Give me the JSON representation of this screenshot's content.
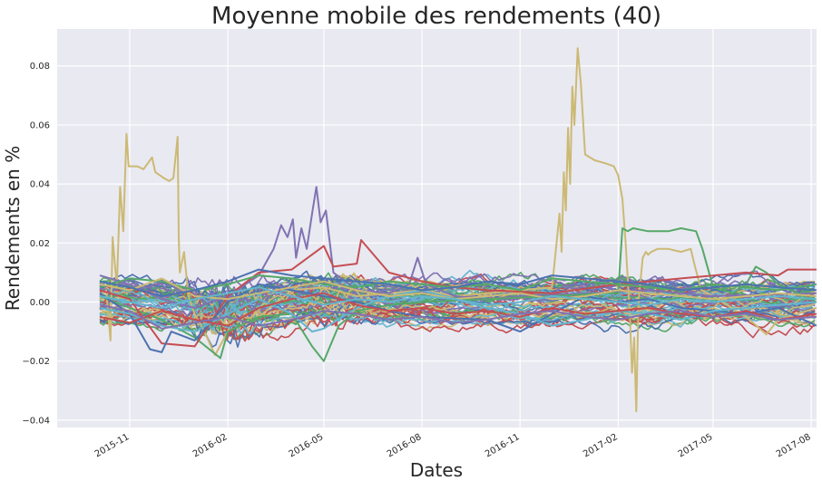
{
  "chart_data": {
    "type": "line",
    "title": "Moyenne mobile des rendements (40)",
    "xlabel": "Dates",
    "ylabel": "Rendements en %",
    "x_range": [
      "2015-08-25",
      "2017-08-06"
    ],
    "ylim": [
      -0.0425,
      0.0925
    ],
    "x_ticks": [
      "2015-11",
      "2016-02",
      "2016-05",
      "2016-08",
      "2016-11",
      "2017-02",
      "2017-05",
      "2017-08"
    ],
    "y_ticks": [
      -0.04,
      -0.02,
      0.0,
      0.02,
      0.04,
      0.06,
      0.08
    ],
    "y_tick_labels": [
      "−0.04",
      "−0.02",
      "0.00",
      "0.02",
      "0.04",
      "0.06",
      "0.08"
    ],
    "grid": true,
    "legend": "none",
    "style": "seaborn-darkgrid",
    "background": "#e9e9f1",
    "series_count_approx": 60,
    "palette": [
      "#4c72b0",
      "#55a868",
      "#c44e52",
      "#8172b2",
      "#ccb974",
      "#64b5cd"
    ],
    "series": [
      {
        "color": "#ccb974",
        "x": [
          "2015-10-04",
          "2015-10-10",
          "2015-10-14",
          "2015-10-16",
          "2015-10-20",
          "2015-10-23",
          "2015-10-26",
          "2015-10-29",
          "2015-10-31",
          "2015-11-04",
          "2015-11-08",
          "2015-11-14",
          "2015-11-18",
          "2015-11-20",
          "2015-11-22",
          "2015-11-25",
          "2015-11-29",
          "2015-12-03",
          "2015-12-08",
          "2015-12-12",
          "2015-12-16",
          "2015-12-17",
          "2015-12-18",
          "2015-12-22",
          "2015-12-26",
          "2016-01-01",
          "2016-01-10",
          "2016-01-20",
          "2016-02-01",
          "2016-03-01",
          "2016-04-01",
          "2016-05-01",
          "2016-06-01",
          "2016-07-01",
          "2016-08-01",
          "2016-09-01",
          "2016-10-01",
          "2016-11-01",
          "2016-12-01",
          "2016-12-08",
          "2016-12-10",
          "2016-12-12",
          "2016-12-14",
          "2016-12-16",
          "2016-12-18",
          "2016-12-20",
          "2016-12-22",
          "2016-12-25",
          "2016-12-28",
          "2017-01-01",
          "2017-01-10",
          "2017-01-20",
          "2017-01-28",
          "2017-02-01",
          "2017-02-05",
          "2017-02-08",
          "2017-02-12",
          "2017-02-14",
          "2017-02-16",
          "2017-02-18",
          "2017-02-20",
          "2017-02-24",
          "2017-02-27",
          "2017-03-01",
          "2017-03-04",
          "2017-03-10",
          "2017-03-20",
          "2017-04-01",
          "2017-04-10",
          "2017-04-14",
          "2017-04-20",
          "2017-05-01",
          "2017-06-01",
          "2017-06-20",
          "2017-07-01",
          "2017-08-06"
        ],
        "values": [
          0.001,
          0.004,
          -0.013,
          0.022,
          0.005,
          0.039,
          0.024,
          0.057,
          0.046,
          0.046,
          0.046,
          0.045,
          0.047,
          0.048,
          0.049,
          0.044,
          0.043,
          0.042,
          0.041,
          0.042,
          0.056,
          0.022,
          0.01,
          0.017,
          0.002,
          -0.004,
          -0.01,
          -0.018,
          -0.01,
          -0.005,
          0.004,
          0.005,
          0.002,
          0.003,
          0.004,
          0.002,
          0.003,
          0.004,
          0.005,
          0.03,
          0.017,
          0.044,
          0.031,
          0.059,
          0.04,
          0.073,
          0.06,
          0.086,
          0.074,
          0.05,
          0.048,
          0.047,
          0.046,
          0.043,
          0.035,
          0.02,
          -0.005,
          -0.024,
          -0.012,
          -0.037,
          0.0,
          0.015,
          0.017,
          0.016,
          0.017,
          0.018,
          0.018,
          0.017,
          0.018,
          0.012,
          0.004,
          0.002,
          -0.005,
          -0.011,
          -0.006,
          -0.002
        ]
      },
      {
        "color": "#8172b2",
        "x": [
          "2015-10-04",
          "2015-11-01",
          "2015-12-01",
          "2016-01-01",
          "2016-02-01",
          "2016-03-01",
          "2016-03-15",
          "2016-03-22",
          "2016-03-28",
          "2016-04-02",
          "2016-04-05",
          "2016-04-10",
          "2016-04-15",
          "2016-04-20",
          "2016-04-24",
          "2016-04-28",
          "2016-05-03",
          "2016-05-10",
          "2016-06-01",
          "2016-07-01",
          "2016-07-20",
          "2016-07-28",
          "2016-08-05",
          "2016-09-01",
          "2016-10-01",
          "2016-11-01",
          "2017-01-01",
          "2017-03-01",
          "2017-05-01",
          "2017-08-06"
        ],
        "values": [
          0.009,
          0.006,
          0.001,
          -0.002,
          0.002,
          0.009,
          0.018,
          0.026,
          0.022,
          0.028,
          0.015,
          0.025,
          0.018,
          0.03,
          0.039,
          0.027,
          0.031,
          0.01,
          0.004,
          0.003,
          0.006,
          0.015,
          0.006,
          0.002,
          0.001,
          0.002,
          0.003,
          0.004,
          0.002,
          0.003
        ]
      },
      {
        "color": "#55a868",
        "x": [
          "2015-10-04",
          "2015-11-01",
          "2015-12-01",
          "2016-01-01",
          "2016-01-25",
          "2016-02-01",
          "2016-03-01",
          "2016-04-01",
          "2016-04-20",
          "2016-05-01",
          "2016-05-15",
          "2016-06-01",
          "2016-07-01",
          "2016-08-01",
          "2016-10-01",
          "2016-12-01",
          "2017-01-20",
          "2017-02-01",
          "2017-02-05",
          "2017-02-10",
          "2017-02-15",
          "2017-03-01",
          "2017-03-20",
          "2017-04-01",
          "2017-04-15",
          "2017-04-21",
          "2017-05-01",
          "2017-05-20",
          "2017-06-01",
          "2017-06-10",
          "2017-06-20",
          "2017-07-01",
          "2017-08-06"
        ],
        "values": [
          0.002,
          -0.002,
          -0.006,
          -0.012,
          -0.019,
          -0.01,
          -0.005,
          -0.004,
          -0.015,
          -0.02,
          -0.008,
          -0.003,
          -0.001,
          0.0,
          0.001,
          0.002,
          0.003,
          0.003,
          0.025,
          0.024,
          0.025,
          0.024,
          0.024,
          0.025,
          0.024,
          0.018,
          0.005,
          0.003,
          0.006,
          0.012,
          0.01,
          0.006,
          0.0
        ]
      },
      {
        "color": "#c44e52",
        "x": [
          "2015-10-04",
          "2015-11-01",
          "2015-12-01",
          "2016-01-01",
          "2016-02-01",
          "2016-03-01",
          "2016-04-01",
          "2016-05-01",
          "2016-05-10",
          "2016-06-01",
          "2016-06-05",
          "2016-07-01",
          "2016-08-01",
          "2016-09-01",
          "2016-10-01",
          "2016-12-01",
          "2017-02-01",
          "2017-04-01",
          "2017-06-01",
          "2017-07-01",
          "2017-07-10",
          "2017-08-06"
        ],
        "values": [
          0.004,
          0.001,
          -0.014,
          -0.015,
          0.002,
          0.01,
          0.011,
          0.019,
          0.012,
          0.013,
          0.021,
          0.01,
          0.007,
          0.005,
          0.004,
          0.003,
          0.006,
          0.008,
          0.01,
          0.009,
          0.011,
          0.011
        ]
      },
      {
        "color": "#4c72b0",
        "x": [
          "2015-10-04",
          "2015-11-01",
          "2015-11-20",
          "2015-12-01",
          "2015-12-10",
          "2016-01-01",
          "2016-02-01",
          "2016-03-01",
          "2016-04-01",
          "2016-05-01",
          "2016-06-01",
          "2016-07-01",
          "2016-08-01",
          "2016-10-01",
          "2016-11-01",
          "2016-12-01",
          "2017-01-01",
          "2017-02-01",
          "2017-03-01",
          "2017-04-01",
          "2017-05-01",
          "2017-06-01",
          "2017-07-01",
          "2017-08-06"
        ],
        "values": [
          0.003,
          -0.004,
          -0.016,
          -0.017,
          -0.01,
          -0.013,
          0.0,
          0.006,
          0.004,
          0.002,
          0.0,
          -0.003,
          -0.005,
          -0.006,
          -0.01,
          -0.004,
          0.002,
          0.0,
          0.001,
          -0.002,
          -0.003,
          -0.004,
          -0.002,
          -0.008
        ]
      },
      {
        "color": "#64b5cd",
        "x": [
          "2015-10-04",
          "2015-11-01",
          "2015-12-01",
          "2016-01-01",
          "2016-02-01",
          "2016-03-01",
          "2016-04-01",
          "2016-04-20",
          "2016-05-01",
          "2016-06-01",
          "2016-07-01",
          "2016-08-01",
          "2016-09-01",
          "2016-10-01",
          "2016-11-01",
          "2016-12-01",
          "2017-01-01",
          "2017-02-01",
          "2017-03-01",
          "2017-04-01",
          "2017-05-01",
          "2017-06-01",
          "2017-07-01",
          "2017-08-06"
        ],
        "values": [
          -0.002,
          -0.004,
          -0.008,
          -0.01,
          -0.004,
          0.001,
          -0.004,
          -0.01,
          -0.009,
          -0.002,
          0.002,
          0.004,
          0.001,
          -0.002,
          -0.004,
          -0.008,
          -0.006,
          -0.003,
          -0.004,
          -0.006,
          -0.003,
          -0.002,
          -0.001,
          0.0
        ]
      },
      {
        "color": "#55a868",
        "x": [
          "2015-10-04",
          "2015-11-01",
          "2015-12-01",
          "2016-01-01",
          "2016-02-01",
          "2016-03-01",
          "2016-04-01",
          "2016-05-01",
          "2016-06-01",
          "2016-07-01",
          "2016-08-01",
          "2016-09-01",
          "2016-10-01",
          "2016-11-01",
          "2016-12-01",
          "2017-01-01",
          "2017-02-01",
          "2017-03-01",
          "2017-04-01",
          "2017-05-01",
          "2017-06-01",
          "2017-07-01",
          "2017-08-06"
        ],
        "values": [
          0.005,
          0.008,
          0.007,
          0.004,
          0.006,
          0.009,
          0.008,
          0.006,
          0.005,
          0.007,
          0.006,
          0.005,
          0.006,
          0.004,
          0.008,
          0.007,
          0.006,
          0.005,
          0.004,
          0.006,
          0.005,
          0.004,
          0.006
        ]
      },
      {
        "color": "#c44e52",
        "x": [
          "2015-10-04",
          "2015-11-01",
          "2015-12-01",
          "2016-01-01",
          "2016-02-01",
          "2016-03-01",
          "2016-04-01",
          "2016-05-01",
          "2016-06-01",
          "2016-07-01",
          "2016-08-01",
          "2016-09-01",
          "2016-10-01",
          "2016-11-01",
          "2016-12-01",
          "2017-01-01",
          "2017-02-01",
          "2017-03-01",
          "2017-04-01",
          "2017-05-01",
          "2017-06-01",
          "2017-07-01",
          "2017-08-06"
        ],
        "values": [
          -0.005,
          -0.007,
          -0.003,
          -0.006,
          -0.008,
          -0.002,
          0.001,
          0.003,
          -0.001,
          -0.003,
          -0.002,
          -0.004,
          -0.003,
          -0.005,
          -0.002,
          -0.004,
          -0.003,
          -0.002,
          -0.004,
          -0.005,
          -0.003,
          -0.006,
          -0.004
        ]
      },
      {
        "color": "#ccb974",
        "x": [
          "2015-10-04",
          "2015-11-01",
          "2015-12-01",
          "2016-01-01",
          "2016-02-01",
          "2016-03-01",
          "2016-04-01",
          "2016-05-01",
          "2016-06-01",
          "2016-07-01",
          "2016-08-01",
          "2016-09-01",
          "2016-10-01",
          "2016-11-01",
          "2016-12-01",
          "2017-01-01",
          "2017-02-01",
          "2017-03-01",
          "2017-04-01",
          "2017-05-01",
          "2017-06-01",
          "2017-07-01",
          "2017-08-06"
        ],
        "values": [
          0.006,
          0.004,
          0.008,
          0.002,
          0.001,
          0.003,
          0.005,
          0.007,
          0.004,
          0.002,
          0.003,
          0.001,
          0.002,
          0.003,
          0.001,
          0.002,
          0.004,
          0.003,
          0.002,
          0.001,
          0.002,
          0.003,
          0.002
        ]
      },
      {
        "color": "#4c72b0",
        "x": [
          "2015-10-04",
          "2015-11-01",
          "2015-12-01",
          "2016-01-01",
          "2016-02-01",
          "2016-03-01",
          "2016-04-01",
          "2016-05-01",
          "2016-06-01",
          "2016-07-01",
          "2016-08-01",
          "2016-09-01",
          "2016-10-01",
          "2016-11-01",
          "2016-12-01",
          "2017-01-01",
          "2017-02-01",
          "2017-03-01",
          "2017-04-01",
          "2017-05-01",
          "2017-06-01",
          "2017-07-01",
          "2017-08-06"
        ],
        "values": [
          0.007,
          0.005,
          0.002,
          0.004,
          0.007,
          0.011,
          0.009,
          0.008,
          0.007,
          0.006,
          0.004,
          0.005,
          0.007,
          0.006,
          0.009,
          0.008,
          0.007,
          0.006,
          0.004,
          0.005,
          0.006,
          0.005,
          0.004
        ]
      },
      {
        "color": "#8172b2",
        "x": [
          "2015-10-04",
          "2015-11-01",
          "2015-12-01",
          "2016-01-01",
          "2016-02-01",
          "2016-03-01",
          "2016-04-01",
          "2016-05-01",
          "2016-06-01",
          "2016-07-01",
          "2016-08-01",
          "2016-09-01",
          "2016-10-01",
          "2016-11-01",
          "2016-12-01",
          "2017-01-01",
          "2017-02-01",
          "2017-03-01",
          "2017-04-01",
          "2017-05-01",
          "2017-06-01",
          "2017-07-01",
          "2017-08-06"
        ],
        "values": [
          -0.001,
          -0.003,
          -0.009,
          -0.007,
          -0.005,
          -0.008,
          -0.006,
          -0.003,
          -0.004,
          -0.006,
          -0.005,
          -0.007,
          -0.006,
          -0.004,
          -0.003,
          -0.005,
          -0.006,
          -0.004,
          -0.003,
          -0.005,
          -0.004,
          -0.006,
          -0.005
        ]
      },
      {
        "color": "#64b5cd",
        "x": [
          "2015-10-04",
          "2015-11-01",
          "2015-12-01",
          "2016-01-01",
          "2016-02-01",
          "2016-03-01",
          "2016-04-01",
          "2016-05-01",
          "2016-06-01",
          "2016-07-01",
          "2016-08-01",
          "2016-09-01",
          "2016-10-01",
          "2016-11-01",
          "2016-12-01",
          "2017-01-01",
          "2017-02-01",
          "2017-03-01",
          "2017-04-01",
          "2017-05-01",
          "2017-06-01",
          "2017-07-01",
          "2017-08-06"
        ],
        "values": [
          0.002,
          0.0,
          -0.002,
          0.001,
          0.003,
          0.005,
          0.002,
          -0.001,
          0.001,
          0.0,
          0.002,
          0.001,
          -0.001,
          0.0,
          0.002,
          0.001,
          0.0,
          -0.001,
          0.001,
          0.0,
          0.001,
          0.002,
          0.001
        ]
      }
    ]
  }
}
